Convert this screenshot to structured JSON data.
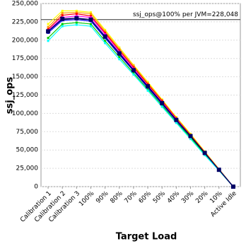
{
  "chart_data": {
    "type": "line",
    "y_label": "ssj_ops",
    "x_label": "Target Load",
    "annotation": "ssj_ops@100% per JVM=228,048",
    "reference_value": 228048,
    "categories": [
      "Calibration 1",
      "Calibration 2",
      "Calibration 3",
      "100%",
      "90%",
      "80%",
      "70%",
      "60%",
      "50%",
      "40%",
      "30%",
      "20%",
      "10%",
      "Active Idle"
    ],
    "ylim": [
      0,
      250000
    ],
    "yticks": [
      {
        "value": 0,
        "label": "0"
      },
      {
        "value": 25000,
        "label": "25,000"
      },
      {
        "value": 50000,
        "label": "50,000"
      },
      {
        "value": 75000,
        "label": "75,000"
      },
      {
        "value": 100000,
        "label": "100,000"
      },
      {
        "value": 125000,
        "label": "125,000"
      },
      {
        "value": 150000,
        "label": "150,000"
      },
      {
        "value": 175000,
        "label": "175,000"
      },
      {
        "value": 200000,
        "label": "200,000"
      },
      {
        "value": 225000,
        "label": "225,000"
      },
      {
        "value": 250000,
        "label": "250,000"
      }
    ],
    "grid": true,
    "series": [
      {
        "color": "#ffff00",
        "values": [
          222000,
          240000,
          240000,
          238000,
          214000,
          190000,
          166000,
          143000,
          119000,
          95000,
          72000,
          48000,
          24000,
          0
        ]
      },
      {
        "color": "#ff9900",
        "values": [
          218000,
          237000,
          238000,
          236000,
          212000,
          188000,
          165000,
          141000,
          118000,
          94000,
          71000,
          47000,
          24000,
          0
        ]
      },
      {
        "color": "#ff0000",
        "values": [
          215000,
          234000,
          236000,
          233000,
          210000,
          186000,
          163000,
          140000,
          117000,
          93000,
          70000,
          47000,
          23000,
          0
        ]
      },
      {
        "color": "#ff00ff",
        "values": [
          213000,
          231000,
          233000,
          231000,
          208000,
          184000,
          161000,
          138000,
          115000,
          92000,
          69000,
          46000,
          23000,
          0
        ]
      },
      {
        "color": "#0000ff",
        "values": [
          210000,
          227000,
          228000,
          226000,
          203000,
          180000,
          158000,
          135000,
          113000,
          90000,
          68000,
          45000,
          23000,
          0
        ]
      },
      {
        "color": "#00cc00",
        "values": [
          203000,
          222000,
          224000,
          222000,
          199000,
          177000,
          155000,
          133000,
          111000,
          88000,
          67000,
          44000,
          22000,
          0
        ]
      },
      {
        "color": "#00ffff",
        "values": [
          199000,
          219000,
          221000,
          219000,
          196000,
          174000,
          153000,
          131000,
          109000,
          87000,
          65000,
          43000,
          22000,
          0
        ]
      },
      {
        "color": "#000066",
        "values": [
          212000,
          229000,
          230000,
          228000,
          205000,
          182000,
          159000,
          137000,
          114000,
          91000,
          69000,
          46000,
          23000,
          0
        ]
      }
    ]
  }
}
